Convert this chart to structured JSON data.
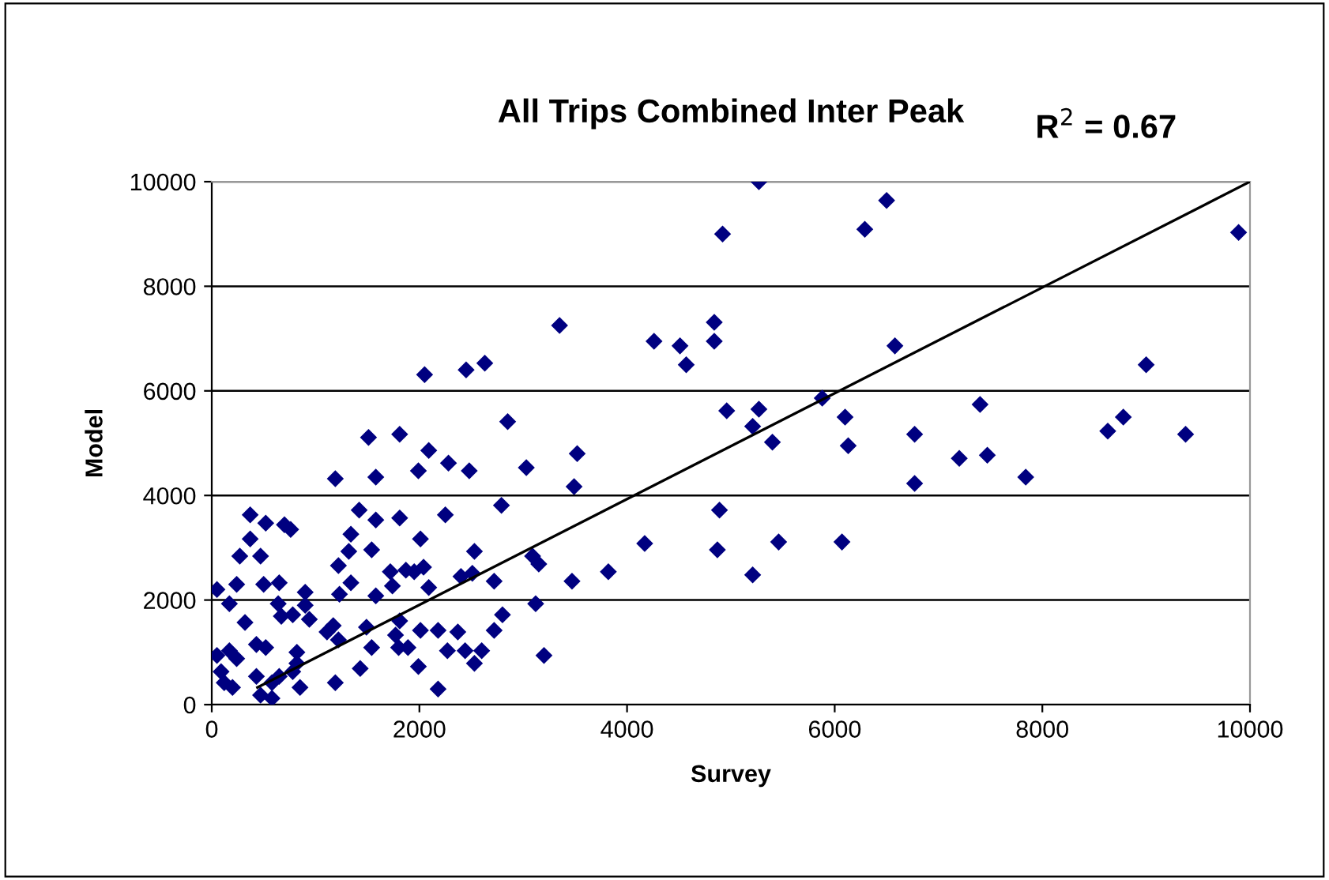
{
  "chart_data": {
    "type": "scatter",
    "title": "All Trips Combined Inter Peak",
    "xlabel": "Survey",
    "ylabel": "Model",
    "annotations": [
      "R$^{2}$ = 0.67"
    ],
    "xlim": [
      0,
      10000
    ],
    "ylim": [
      0,
      10000
    ],
    "xticks": [
      0,
      2000,
      4000,
      6000,
      8000,
      10000
    ],
    "yticks": [
      0,
      2000,
      4000,
      6000,
      8000,
      10000
    ],
    "grid": "y",
    "series": [
      {
        "color": "#000080",
        "marker": "diamond",
        "x": [
          7200,
          7400,
          7470,
          7840,
          8630,
          8780,
          9000,
          9380,
          9890,
          5270,
          4920,
          6290,
          6500,
          3350,
          4260,
          4510,
          4570,
          4840,
          4840,
          6580,
          4960,
          5270,
          5210,
          5400,
          5880,
          6100,
          6130,
          6770,
          6770,
          3520,
          3490,
          4890,
          4170,
          4870,
          5460,
          6070,
          3470,
          3820,
          5210,
          2050,
          2450,
          2630,
          2850,
          1510,
          1810,
          2090,
          1990,
          2280,
          2480,
          3030,
          1190,
          1580,
          2790,
          2250,
          2530,
          3090,
          3150,
          2400,
          2510,
          2720,
          3120,
          2800,
          2720,
          2370,
          2270,
          2440,
          2600,
          2530,
          3200,
          370,
          520,
          700,
          760,
          1420,
          1580,
          1810,
          370,
          1340,
          1320,
          1540,
          2010,
          270,
          470,
          1220,
          1340,
          1720,
          1870,
          1950,
          2040,
          1740,
          50,
          240,
          500,
          650,
          900,
          170,
          640,
          900,
          1230,
          1580,
          2090,
          670,
          780,
          940,
          320,
          1110,
          1170,
          1490,
          1810,
          2010,
          2180,
          430,
          520,
          820,
          1220,
          1540,
          1770,
          1800,
          1890,
          50,
          170,
          240,
          90,
          120,
          200,
          430,
          580,
          650,
          780,
          850,
          1190,
          1430,
          470,
          580,
          2180,
          1990,
          820
        ],
        "values": [
          4710,
          5740,
          4770,
          4350,
          5230,
          5500,
          6500,
          5170,
          9030,
          10000,
          9000,
          9090,
          9640,
          7250,
          6950,
          6860,
          6500,
          7310,
          6950,
          6860,
          5620,
          5650,
          5320,
          5020,
          5860,
          5500,
          4950,
          5170,
          4230,
          4800,
          4170,
          3720,
          3080,
          2960,
          3110,
          3110,
          2360,
          2540,
          2480,
          6310,
          6400,
          6530,
          5410,
          5110,
          5170,
          4860,
          4470,
          4620,
          4470,
          4530,
          4320,
          4350,
          3810,
          3630,
          2930,
          2840,
          2690,
          2450,
          2510,
          2360,
          1930,
          1720,
          1420,
          1390,
          1030,
          1030,
          1030,
          790,
          940,
          3630,
          3470,
          3440,
          3350,
          3720,
          3530,
          3570,
          3170,
          3260,
          2930,
          2960,
          3170,
          2840,
          2840,
          2660,
          2330,
          2540,
          2570,
          2540,
          2630,
          2270,
          2200,
          2300,
          2300,
          2330,
          2150,
          1930,
          1930,
          1900,
          2110,
          2080,
          2240,
          1690,
          1720,
          1630,
          1570,
          1390,
          1510,
          1480,
          1600,
          1420,
          1420,
          1150,
          1090,
          1000,
          1240,
          1090,
          1330,
          1090,
          1090,
          940,
          1030,
          880,
          630,
          420,
          330,
          540,
          420,
          540,
          630,
          330,
          420,
          690,
          180,
          120,
          300,
          730,
          790
        ]
      },
      {
        "type": "line",
        "color": "#000000",
        "marker": "none",
        "line_style": "solid",
        "x": [
          440,
          10000
        ],
        "values": [
          330,
          10000
        ]
      }
    ]
  }
}
